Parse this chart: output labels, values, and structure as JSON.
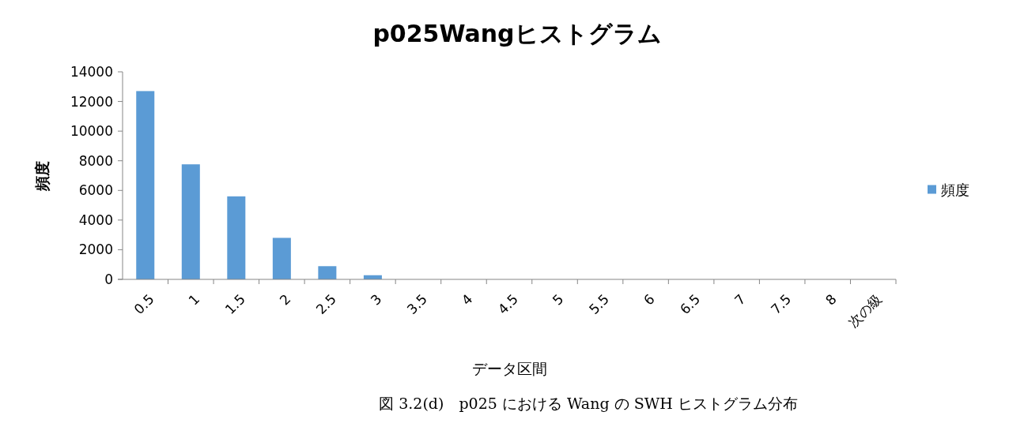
{
  "chart_data": {
    "type": "bar",
    "title": "p025Wangヒストグラム",
    "xlabel": "データ区間",
    "ylabel": "頻度",
    "categories": [
      "0.5",
      "1",
      "1.5",
      "2",
      "2.5",
      "3",
      "3.5",
      "4",
      "4.5",
      "5",
      "5.5",
      "6",
      "6.5",
      "7",
      "7.5",
      "8",
      "次の級"
    ],
    "series": [
      {
        "name": "頻度",
        "color": "#5b9bd5",
        "values": [
          12700,
          7760,
          5600,
          2800,
          890,
          280,
          0,
          0,
          0,
          0,
          0,
          0,
          0,
          0,
          0,
          0,
          0
        ]
      }
    ],
    "ylim": [
      0,
      14000
    ],
    "yticks": [
      0,
      2000,
      4000,
      6000,
      8000,
      10000,
      12000,
      14000
    ],
    "grid": false,
    "legend": "right",
    "annotations": [
      "図 3.2(d)　p025 における Wang の SWH ヒストグラム分布"
    ]
  }
}
